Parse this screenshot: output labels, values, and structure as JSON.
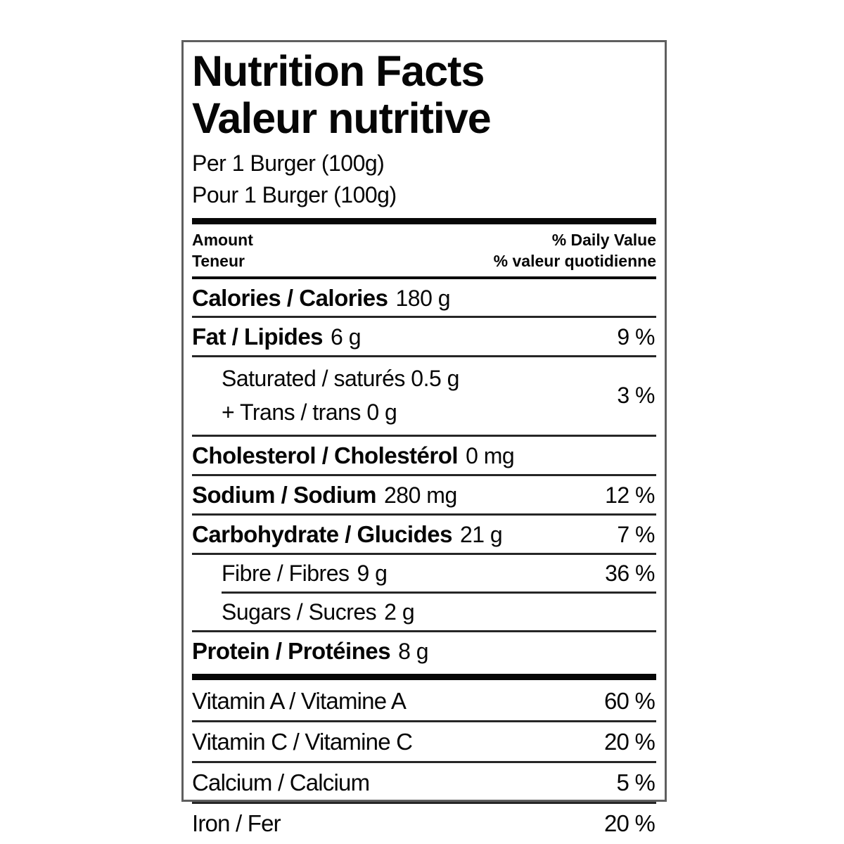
{
  "label": {
    "title_en": "Nutrition Facts",
    "title_fr": "Valeur nutritive",
    "serving_en": "Per 1 Burger (100g)",
    "serving_fr": "Pour 1 Burger (100g)",
    "header": {
      "amount_en": "Amount",
      "amount_fr": "Teneur",
      "daily_value_en": "% Daily Value",
      "daily_value_fr": "% valeur quotidienne"
    },
    "rows": [
      {
        "name": "Calories / Calories",
        "value": "180 g",
        "percent": ""
      },
      {
        "name": "Fat / Lipides",
        "value": "6 g",
        "percent": "9 %"
      },
      {
        "name_line1": "Saturated / saturés",
        "value_line1": "0.5 g",
        "name_line2": "+ Trans / trans",
        "value_line2": "0 g",
        "percent": "3 %"
      },
      {
        "name": "Cholesterol / Cholestérol",
        "value": "0 mg",
        "percent": ""
      },
      {
        "name": "Sodium / Sodium",
        "value": "280 mg",
        "percent": "12 %"
      },
      {
        "name": "Carbohydrate / Glucides",
        "value": "21 g",
        "percent": "7 %"
      },
      {
        "name": "Fibre / Fibres",
        "value": "9 g",
        "percent": "36 %"
      },
      {
        "name": "Sugars / Sucres",
        "value": "2 g",
        "percent": ""
      },
      {
        "name": "Protein / Protéines",
        "value": "8 g",
        "percent": ""
      }
    ],
    "micronutrients": [
      {
        "name": "Vitamin A / Vitamine A",
        "percent": "60 %"
      },
      {
        "name": "Vitamin C / Vitamine C",
        "percent": "20 %"
      },
      {
        "name": "Calcium / Calcium",
        "percent": "5 %"
      },
      {
        "name": "Iron / Fer",
        "percent": "20 %"
      }
    ],
    "colors": {
      "text": "#060606",
      "border": "#5f5f5f",
      "rule": "#262626",
      "background": "#ffffff"
    }
  }
}
